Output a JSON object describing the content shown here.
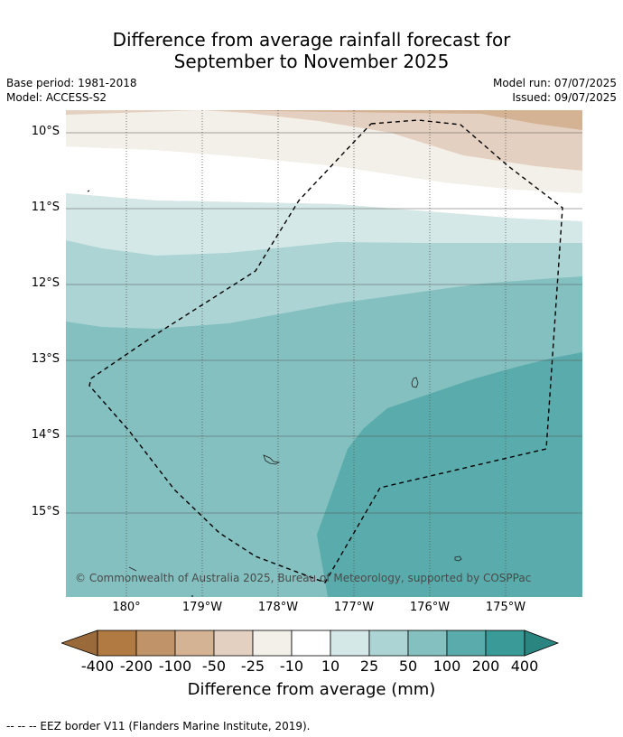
{
  "title_line1": "Difference from average rainfall forecast for",
  "title_line2": "September to November 2025",
  "base_period": "Base period: 1981-2018",
  "model": "Model: ACCESS-S2",
  "model_run": "Model run: 07/07/2025",
  "issued": "Issued: 09/07/2025",
  "copyright": "© Commonwealth of Australia 2025, Bureau of Meteorology, supported by COSPPac",
  "lat_labels": [
    "10°S",
    "11°S",
    "12°S",
    "13°S",
    "14°S",
    "15°S"
  ],
  "lon_labels": [
    "180°",
    "179°W",
    "178°W",
    "177°W",
    "176°W",
    "175°W"
  ],
  "colorbar": {
    "title": "Difference from average (mm)",
    "tick_labels": [
      "-400",
      "-200",
      "-100",
      "-50",
      "-25",
      "-10",
      "10",
      "25",
      "50",
      "100",
      "200",
      "400"
    ],
    "colors": [
      "#9b6a3a",
      "#b07a42",
      "#c09468",
      "#d4b294",
      "#e4d0c0",
      "#f3efe9",
      "#ffffff",
      "#d4e8e7",
      "#acd4d4",
      "#84c0c0",
      "#5aacac",
      "#3a9a98",
      "#2a8480"
    ]
  },
  "footer": "--  --  -- EEZ border V11 (Flanders Marine Institute, 2019)."
}
